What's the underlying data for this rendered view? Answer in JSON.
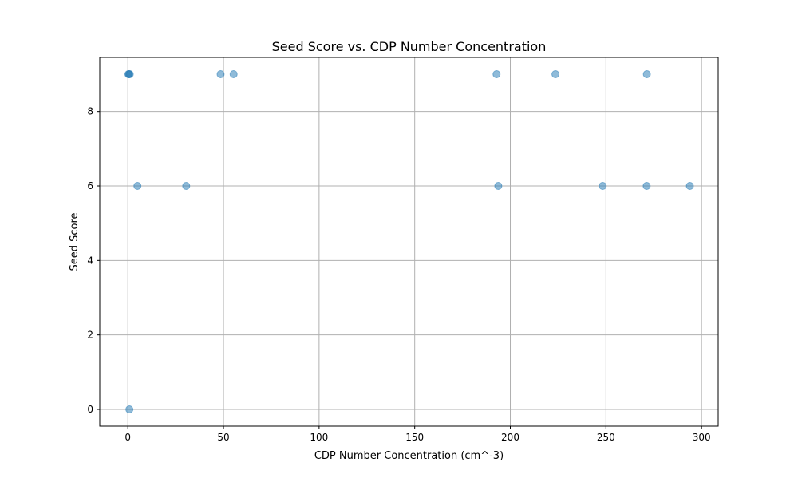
{
  "chart_data": {
    "type": "scatter",
    "title": "Seed Score vs. CDP Number Concentration",
    "xlabel": "CDP Number Concentration (cm^-3)",
    "ylabel": "Seed Score",
    "xlim": [
      -14.7,
      308.7
    ],
    "ylim": [
      -0.45,
      9.45
    ],
    "xticks": [
      0,
      50,
      100,
      150,
      200,
      250,
      300
    ],
    "yticks": [
      0,
      2,
      4,
      6,
      8
    ],
    "grid": true,
    "marker_color": "#1f77b4",
    "marker_opacity": 0.5,
    "points": [
      {
        "x": 0.3,
        "y": 9
      },
      {
        "x": 0.6,
        "y": 9
      },
      {
        "x": 1.0,
        "y": 9
      },
      {
        "x": 0.8,
        "y": 0
      },
      {
        "x": 5.0,
        "y": 6
      },
      {
        "x": 30.5,
        "y": 6
      },
      {
        "x": 48.5,
        "y": 9
      },
      {
        "x": 55.3,
        "y": 9
      },
      {
        "x": 192.8,
        "y": 9
      },
      {
        "x": 193.7,
        "y": 6
      },
      {
        "x": 223.6,
        "y": 9
      },
      {
        "x": 248.3,
        "y": 6
      },
      {
        "x": 271.4,
        "y": 9
      },
      {
        "x": 271.3,
        "y": 6
      },
      {
        "x": 293.9,
        "y": 6
      }
    ]
  }
}
